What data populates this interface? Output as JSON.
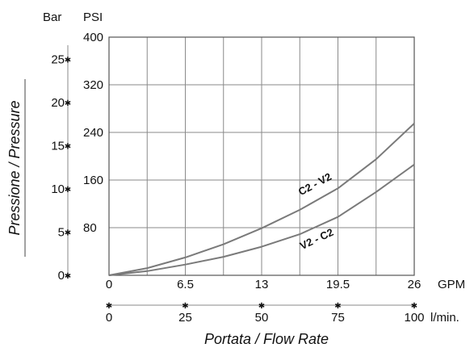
{
  "chart_data": {
    "type": "line",
    "xlabel": "Portata  /  Flow Rate",
    "ylabel": "Pressione  /  Pressure",
    "primary_x": {
      "unit": "GPM",
      "ticks": [
        "0",
        "6.5",
        "13",
        "19.5",
        "26"
      ],
      "range": [
        0,
        26
      ]
    },
    "secondary_x": {
      "unit": "l/min.",
      "ticks": [
        "0",
        "25",
        "50",
        "75",
        "100"
      ],
      "range": [
        0,
        100
      ]
    },
    "primary_y": {
      "unit": "PSI",
      "ticks": [
        "80",
        "160",
        "240",
        "320",
        "400"
      ],
      "range": [
        0,
        400
      ]
    },
    "secondary_y": {
      "unit": "Bar",
      "ticks": [
        "0",
        "5",
        "10",
        "15",
        "20",
        "25"
      ],
      "range": [
        0,
        27.58
      ]
    },
    "grid": true,
    "series": [
      {
        "name": "C2 - V2",
        "x": [
          0,
          3.25,
          6.5,
          9.75,
          13,
          16.25,
          19.5,
          22.75,
          26
        ],
        "y": [
          0,
          12,
          30,
          52,
          79,
          110,
          146,
          195,
          255
        ]
      },
      {
        "name": "V2 - C2",
        "x": [
          0,
          3.25,
          6.5,
          9.75,
          13,
          16.25,
          19.5,
          22.75,
          26
        ],
        "y": [
          0,
          7,
          18,
          31,
          48,
          69,
          98,
          140,
          186
        ]
      }
    ]
  }
}
